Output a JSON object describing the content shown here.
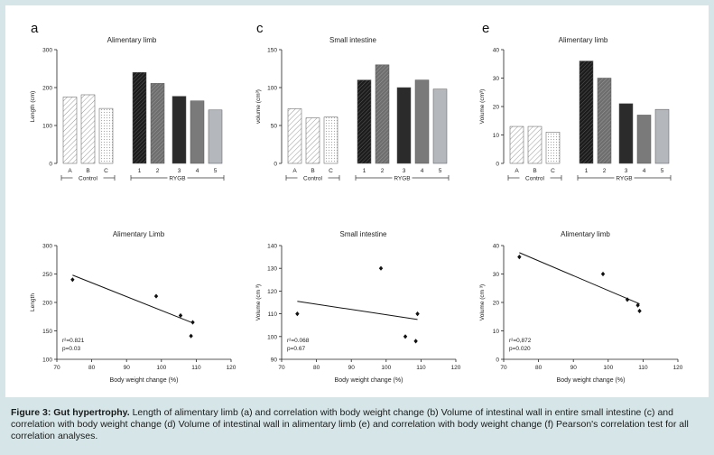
{
  "caption": {
    "label": "Figure 3: Gut hypertrophy.",
    "text": "Length of alimentary limb (a) and correlation with body weight change (b) Volume of intestinal wall in entire small intestine (c) and correlation with body weight change (d) Volume of intestinal wall in alimentary limb (e) and correlation with body weight change (f) Pearson's correlation test for all correlation analyses."
  },
  "colors": {
    "page_bg": "#d6e6e8",
    "panel_bg": "#ffffff",
    "dark": "#2b2b2b",
    "mid": "#7a7a7a",
    "light": "#b4b8bd"
  },
  "chart_data": [
    {
      "panel": "a",
      "type": "bar",
      "title": "Alimentary limb",
      "ylabel": "Length (cm)",
      "ylim": [
        0,
        300
      ],
      "yticks": [
        0,
        100,
        200,
        300
      ],
      "categories": [
        "A",
        "B",
        "C",
        "1",
        "2",
        "3",
        "4",
        "5"
      ],
      "values": [
        175,
        181,
        145,
        240,
        211,
        177,
        165,
        141
      ],
      "styles": [
        "hatch-light",
        "hatch-light",
        "dots-light",
        "hatch-dark",
        "hatch-mid",
        "solid-dark",
        "solid-mid",
        "solid-light"
      ],
      "groups": [
        {
          "label": "Control",
          "from": 0,
          "to": 2
        },
        {
          "label": "RYGB",
          "from": 3,
          "to": 7
        }
      ]
    },
    {
      "panel": "c",
      "type": "bar",
      "title": "Small intestine",
      "ylabel": "volume (cm³)",
      "ylim": [
        0,
        150
      ],
      "yticks": [
        0,
        50,
        100,
        150
      ],
      "categories": [
        "A",
        "B",
        "C",
        "1",
        "2",
        "3",
        "4",
        "5"
      ],
      "values": [
        72,
        60,
        61,
        110,
        130,
        100,
        110,
        98
      ],
      "styles": [
        "hatch-light",
        "hatch-light",
        "dots-light",
        "hatch-dark",
        "hatch-mid",
        "solid-dark",
        "solid-mid",
        "solid-light"
      ],
      "groups": [
        {
          "label": "Control",
          "from": 0,
          "to": 2
        },
        {
          "label": "RYGB",
          "from": 3,
          "to": 7
        }
      ]
    },
    {
      "panel": "e",
      "type": "bar",
      "title": "Alimentary limb",
      "ylabel": "Volume (cm³)",
      "ylim": [
        0,
        40
      ],
      "yticks": [
        0,
        10,
        20,
        30,
        40
      ],
      "categories": [
        "A",
        "B",
        "C",
        "1",
        "2",
        "3",
        "4",
        "5"
      ],
      "values": [
        13,
        13,
        11,
        36,
        30,
        21,
        17,
        19
      ],
      "styles": [
        "hatch-light",
        "hatch-light",
        "dots-light",
        "hatch-dark",
        "hatch-mid",
        "solid-dark",
        "solid-mid",
        "solid-light"
      ],
      "groups": [
        {
          "label": "Control",
          "from": 0,
          "to": 2
        },
        {
          "label": "RYGB",
          "from": 3,
          "to": 7
        }
      ]
    },
    {
      "panel": "b",
      "type": "scatter",
      "title": "Alimentary Limb",
      "xlabel": "Body weight change (%)",
      "ylabel": "Length",
      "xlim": [
        70,
        120
      ],
      "xticks": [
        70,
        80,
        90,
        100,
        110,
        120
      ],
      "ylim": [
        100,
        300
      ],
      "yticks": [
        100,
        150,
        200,
        250,
        300
      ],
      "x": [
        74.5,
        98.5,
        105.5,
        108.5,
        109
      ],
      "y": [
        240,
        211,
        177,
        141,
        165
      ],
      "fit": {
        "x": [
          74.5,
          109
        ],
        "y": [
          248,
          164
        ]
      },
      "stats": [
        "r²=0.821",
        "p=0.03"
      ]
    },
    {
      "panel": "d",
      "type": "scatter",
      "title": "Small intestine",
      "xlabel": "Body weight change (%)",
      "ylabel": "Volume (cm ³)",
      "xlim": [
        70,
        120
      ],
      "xticks": [
        70,
        80,
        90,
        100,
        110,
        120
      ],
      "ylim": [
        90,
        140
      ],
      "yticks": [
        90,
        100,
        110,
        120,
        130,
        140
      ],
      "x": [
        74.5,
        98.5,
        105.5,
        108.5,
        109
      ],
      "y": [
        110,
        130,
        100,
        98,
        110
      ],
      "fit": {
        "x": [
          74.5,
          109
        ],
        "y": [
          115.5,
          107.5
        ]
      },
      "stats": [
        "r²=0.068",
        "p=0.67"
      ]
    },
    {
      "panel": "f",
      "type": "scatter",
      "title": "Alimentary limb",
      "xlabel": "Body weight change (%)",
      "ylabel": "Volume (cm ³)",
      "xlim": [
        70,
        120
      ],
      "xticks": [
        70,
        80,
        90,
        100,
        110,
        120
      ],
      "ylim": [
        0,
        40
      ],
      "yticks": [
        0,
        10,
        20,
        30,
        40
      ],
      "x": [
        74.5,
        98.5,
        105.5,
        108.5,
        109
      ],
      "y": [
        36,
        30,
        21,
        19,
        17
      ],
      "fit": {
        "x": [
          74.5,
          109
        ],
        "y": [
          37.5,
          19.5
        ]
      },
      "stats": [
        "r²=0,872",
        "p=0.020"
      ]
    }
  ]
}
